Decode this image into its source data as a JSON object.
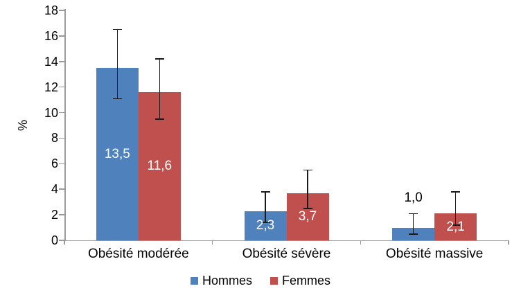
{
  "chart_data": {
    "type": "bar",
    "title": "",
    "ylabel": "%",
    "xlabel": "",
    "ylim": [
      0,
      18
    ],
    "yticks": [
      0,
      2,
      4,
      6,
      8,
      10,
      12,
      14,
      16,
      18
    ],
    "grid": false,
    "legend_position": "bottom",
    "axis_color": "#9A9A9A",
    "error_bar_color": "#1A1A1A",
    "text_color": "#000000",
    "categories": [
      "Obésité modérée",
      "Obésité sévère",
      "Obésité massive"
    ],
    "series": [
      {
        "name": "Hommes",
        "color": "#4F81BD",
        "values": [
          13.5,
          2.3,
          1.0
        ],
        "value_labels": [
          "13,5",
          "2,3",
          "1,0"
        ],
        "label_color": [
          "#FFFFFF",
          "#FFFFFF",
          "#000000"
        ],
        "label_placement": [
          "center",
          "center",
          "above-error-bar"
        ],
        "error_low": [
          11.1,
          1.4,
          0.5
        ],
        "error_high": [
          16.5,
          3.8,
          2.1
        ]
      },
      {
        "name": "Femmes",
        "color": "#C0504D",
        "values": [
          11.6,
          3.7,
          2.1
        ],
        "value_labels": [
          "11,6",
          "3,7",
          "2,1"
        ],
        "label_color": [
          "#FFFFFF",
          "#FFFFFF",
          "#FFFFFF"
        ],
        "label_placement": [
          "center",
          "center",
          "center"
        ],
        "error_low": [
          9.5,
          2.5,
          1.2
        ],
        "error_high": [
          14.2,
          5.5,
          3.8
        ]
      }
    ]
  }
}
